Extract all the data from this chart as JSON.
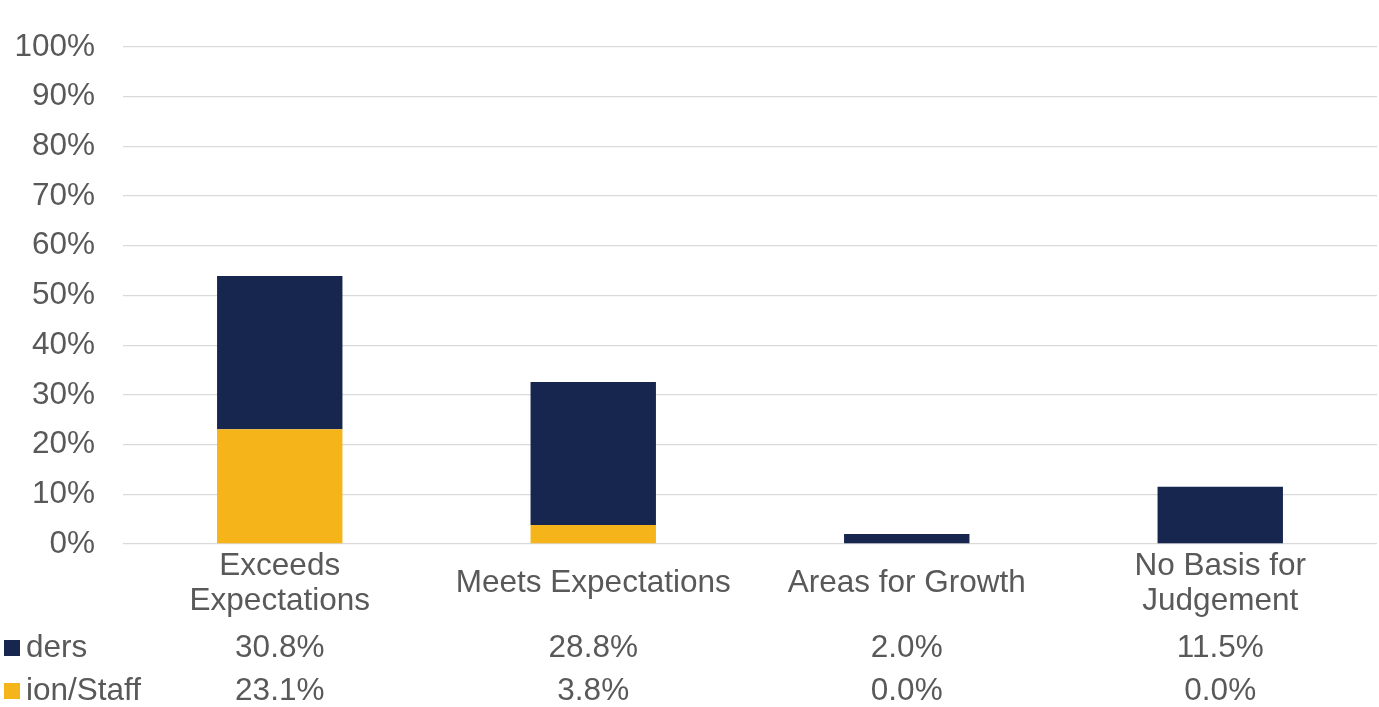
{
  "chart_data": {
    "type": "bar",
    "categories": [
      "Exceeds Expectations",
      "Meets Expectations",
      "Areas for Growth",
      "No Basis for Judgement"
    ],
    "stacked": true,
    "series": [
      {
        "name": "ion/Staff",
        "color": "#f5b41a",
        "values": [
          23.1,
          3.8,
          0.0,
          0.0
        ],
        "value_labels": [
          "23.1%",
          "3.8%",
          "0.0%",
          "0.0%"
        ]
      },
      {
        "name": "ders",
        "color": "#16264f",
        "values": [
          30.8,
          28.8,
          2.0,
          11.5
        ],
        "value_labels": [
          "30.8%",
          "28.8%",
          "2.0%",
          "11.5%"
        ]
      }
    ],
    "ylim": [
      0,
      100
    ],
    "yticks": [
      {
        "value": 0,
        "label": "0%"
      },
      {
        "value": 10,
        "label": "10%"
      },
      {
        "value": 20,
        "label": "20%"
      },
      {
        "value": 30,
        "label": "30%"
      },
      {
        "value": 40,
        "label": "40%"
      },
      {
        "value": 50,
        "label": "50%"
      },
      {
        "value": 60,
        "label": "60%"
      },
      {
        "value": 70,
        "label": "70%"
      },
      {
        "value": 80,
        "label": "80%"
      },
      {
        "value": 90,
        "label": "90%"
      },
      {
        "value": 100,
        "label": "100%"
      }
    ],
    "grid": "y",
    "legend": "bottom left"
  }
}
